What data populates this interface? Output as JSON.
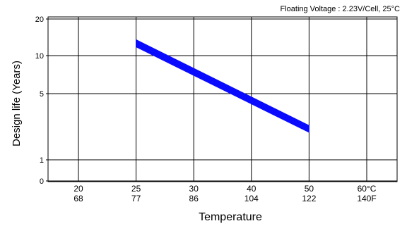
{
  "chart_data": {
    "type": "area",
    "annotation": "Floating Voltage : 2.23V/Cell, 25°C",
    "xlabel": "Temperature",
    "ylabel": "Design life (Years)",
    "x_ticks": [
      {
        "value": 20,
        "celsius": "20",
        "fahrenheit": "68"
      },
      {
        "value": 25,
        "celsius": "25",
        "fahrenheit": "77"
      },
      {
        "value": 30,
        "celsius": "30",
        "fahrenheit": "86"
      },
      {
        "value": 40,
        "celsius": "40",
        "fahrenheit": "104"
      },
      {
        "value": 50,
        "celsius": "50",
        "fahrenheit": "122"
      },
      {
        "value": 60,
        "celsius": "60°C",
        "fahrenheit": "140F"
      }
    ],
    "y_ticks": [
      {
        "value": 0,
        "label": "0"
      },
      {
        "value": 1,
        "label": "1"
      },
      {
        "value": 5,
        "label": "5"
      },
      {
        "value": 10,
        "label": "10"
      },
      {
        "value": 20,
        "label": "20"
      }
    ],
    "band": {
      "color": "#0a0aff",
      "x": [
        25,
        50
      ],
      "upper": [
        13.5,
        2.3
      ],
      "lower": [
        11.8,
        1.95
      ]
    },
    "grid": true
  }
}
